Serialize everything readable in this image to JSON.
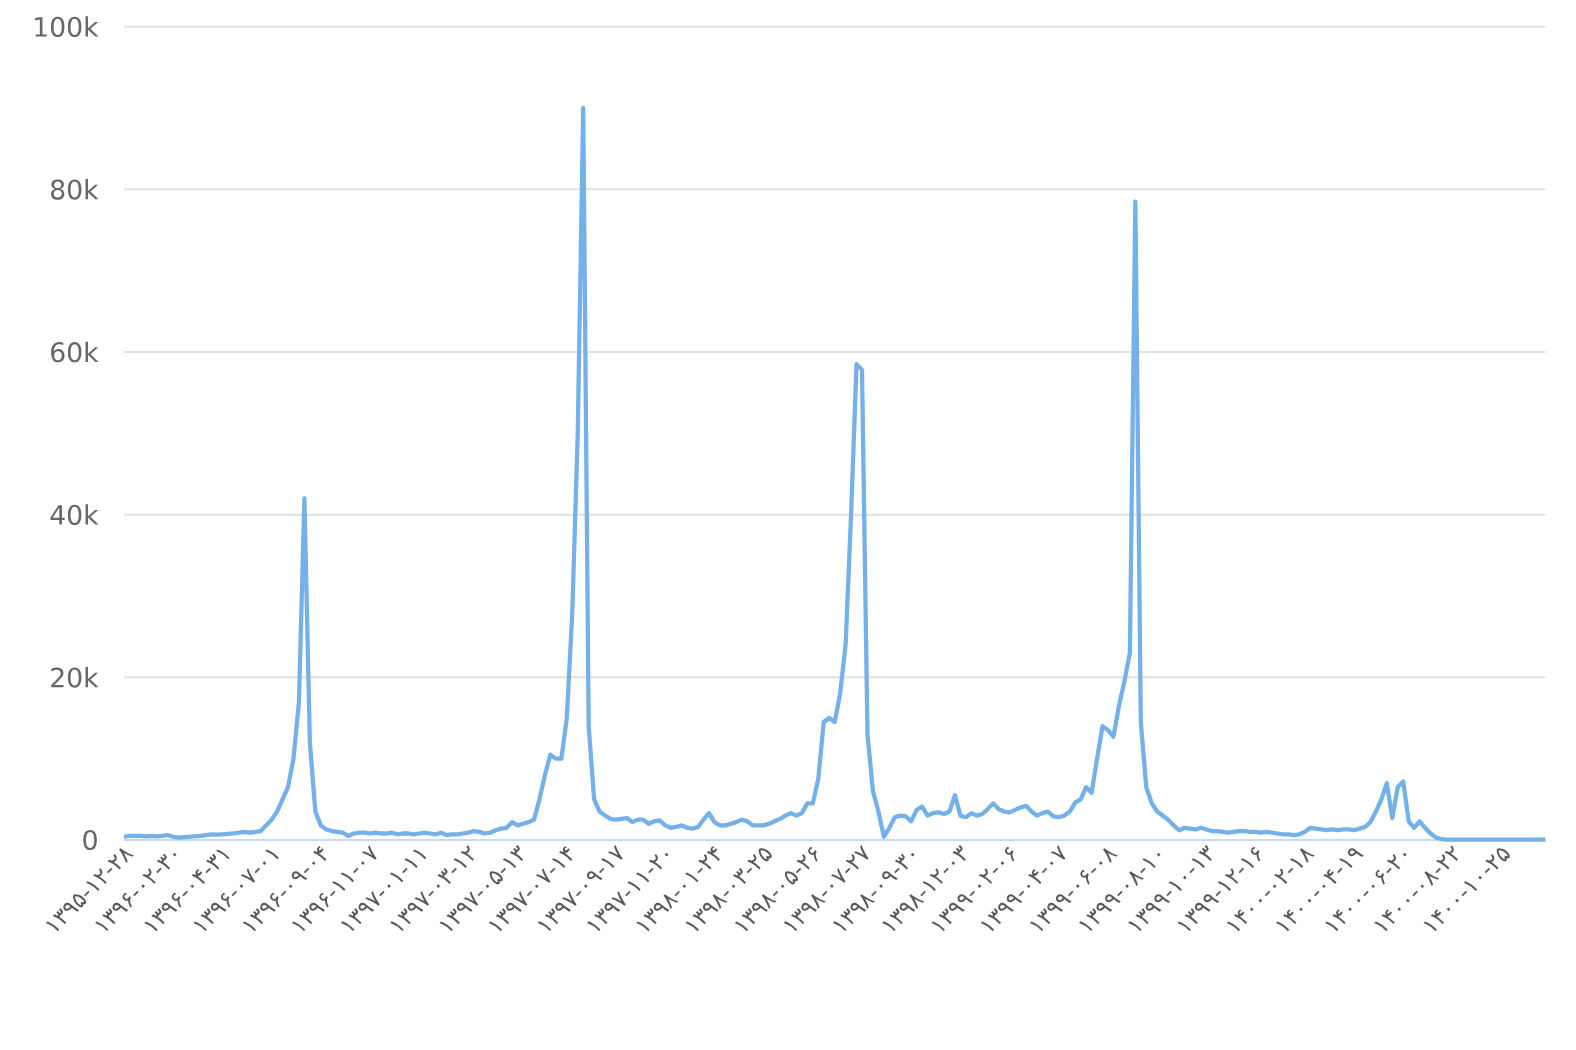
{
  "chart_data": {
    "type": "line",
    "color": "#74b0ea",
    "grid": "y",
    "ylim": [
      0,
      100000
    ],
    "yticks": [
      0,
      {
        "value": 20000,
        "label": "20k"
      },
      {
        "value": 40000,
        "label": "40k"
      },
      {
        "value": 60000,
        "label": "60k"
      },
      {
        "value": 80000,
        "label": "80k"
      },
      {
        "value": 100000,
        "label": "100k"
      }
    ],
    "categories": [
      "۱۳۹۵-۱۲-۲۸",
      null,
      null,
      null,
      null,
      null,
      null,
      null,
      null,
      "۱۳۹۶-۰۲-۳۰",
      null,
      null,
      null,
      null,
      null,
      null,
      null,
      null,
      "۱۳۹۶-۰۴-۳۱",
      null,
      null,
      null,
      null,
      null,
      null,
      null,
      null,
      "۱۳۹۶-۰۷-۰۱",
      null,
      null,
      null,
      null,
      null,
      null,
      null,
      null,
      "۱۳۹۶-۰۹-۰۴",
      null,
      null,
      null,
      null,
      null,
      null,
      null,
      null,
      "۱۳۹۶-۱۱-۰۷",
      null,
      null,
      null,
      null,
      null,
      null,
      null,
      null,
      "۱۳۹۷-۰۱-۱۱",
      null,
      null,
      null,
      null,
      null,
      null,
      null,
      null,
      "۱۳۹۷-۰۳-۱۲",
      null,
      null,
      null,
      null,
      null,
      null,
      null,
      null,
      "۱۳۹۷-۰۵-۱۳",
      null,
      null,
      null,
      null,
      null,
      null,
      null,
      null,
      "۱۳۹۷-۰۷-۱۴",
      null,
      null,
      null,
      null,
      null,
      null,
      null,
      null,
      "۱۳۹۷-۰۹-۱۷",
      null,
      null,
      null,
      null,
      null,
      null,
      null,
      null,
      "۱۳۹۷-۱۱-۲۰",
      null,
      null,
      null,
      null,
      null,
      null,
      null,
      null,
      "۱۳۹۸-۰۱-۲۴",
      null,
      null,
      null,
      null,
      null,
      null,
      null,
      null,
      "۱۳۹۸-۰۳-۲۵",
      null,
      null,
      null,
      null,
      null,
      null,
      null,
      null,
      "۱۳۹۸-۰۵-۲۶",
      null,
      null,
      null,
      null,
      null,
      null,
      null,
      null,
      "۱۳۹۸-۰۷-۲۷",
      null,
      null,
      null,
      null,
      null,
      null,
      null,
      null,
      "۱۳۹۸-۰۹-۳۰",
      null,
      null,
      null,
      null,
      null,
      null,
      null,
      null,
      "۱۳۹۸-۱۲-۰۳",
      null,
      null,
      null,
      null,
      null,
      null,
      null,
      null,
      "۱۳۹۹-۰۲-۰۶",
      null,
      null,
      null,
      null,
      null,
      null,
      null,
      null,
      "۱۳۹۹-۰۴-۰۷",
      null,
      null,
      null,
      null,
      null,
      null,
      null,
      null,
      "۱۳۹۹-۰۶-۰۸",
      null,
      null,
      null,
      null,
      null,
      null,
      null,
      null,
      "۱۳۹۹-۰۸-۱۰",
      null,
      null,
      null,
      null,
      null,
      null,
      null,
      null,
      "۱۳۹۹-۱۰-۱۳",
      null,
      null,
      null,
      null,
      null,
      null,
      null,
      null,
      "۱۳۹۹-۱۲-۱۶",
      null,
      null,
      null,
      null,
      null,
      null,
      null,
      null,
      "۱۴۰۰-۰۲-۱۸",
      null,
      null,
      null,
      null,
      null,
      null,
      null,
      null,
      "۱۴۰۰-۰۴-۱۹",
      null,
      null,
      null,
      null,
      null,
      null,
      null,
      null,
      "۱۴۰۰-۰۶-۲۰",
      null,
      null,
      null,
      null,
      null,
      null,
      null,
      null,
      "۱۴۰۰-۰۸-۲۲",
      null,
      null,
      null,
      null,
      null,
      null,
      null,
      null,
      "۱۴۰۰-۱۰-۲۵",
      null,
      null,
      null,
      null,
      null,
      null,
      null,
      null
    ],
    "values": [
      400,
      500,
      500,
      500,
      450,
      500,
      450,
      500,
      600,
      400,
      300,
      350,
      400,
      450,
      500,
      600,
      700,
      650,
      700,
      750,
      800,
      900,
      1000,
      900,
      1000,
      1100,
      1800,
      2500,
      3500,
      5000,
      6500,
      10000,
      17000,
      42000,
      12000,
      3500,
      1800,
      1300,
      1100,
      1000,
      900,
      500,
      800,
      900,
      900,
      800,
      900,
      800,
      800,
      900,
      700,
      800,
      800,
      700,
      800,
      900,
      800,
      700,
      900,
      600,
      700,
      700,
      800,
      900,
      1100,
      1000,
      800,
      900,
      1200,
      1400,
      1500,
      2200,
      1800,
      2000,
      2200,
      2500,
      5000,
      8000,
      10500,
      10000,
      10000,
      15000,
      28000,
      50000,
      90000,
      14000,
      5000,
      3500,
      3000,
      2600,
      2500,
      2600,
      2700,
      2200,
      2500,
      2500,
      2000,
      2300,
      2400,
      1800,
      1500,
      1600,
      1800,
      1500,
      1400,
      1600,
      2500,
      3300,
      2200,
      1800,
      1800,
      2000,
      2200,
      2500,
      2300,
      1800,
      1800,
      1800,
      2000,
      2300,
      2600,
      3000,
      3300,
      3000,
      3300,
      4500,
      4500,
      7500,
      14500,
      15000,
      14500,
      18000,
      24000,
      40000,
      58500,
      57800,
      13000,
      6000,
      3500,
      400,
      1500,
      2800,
      3000,
      2900,
      2300,
      3700,
      4100,
      3000,
      3300,
      3400,
      3200,
      3500,
      5500,
      3000,
      2800,
      3300,
      3000,
      3200,
      3800,
      4500,
      3800,
      3500,
      3400,
      3700,
      4000,
      4200,
      3500,
      3000,
      3300,
      3500,
      2900,
      2800,
      3000,
      3500,
      4600,
      5000,
      6500,
      5800,
      10000,
      14000,
      13500,
      12700,
      16500,
      19500,
      23000,
      78500,
      14500,
      6500,
      4500,
      3500,
      3000,
      2500,
      1800,
      1200,
      1500,
      1400,
      1300,
      1500,
      1300,
      1100,
      1100,
      1000,
      900,
      1000,
      1100,
      1100,
      1000,
      1000,
      900,
      1000,
      900,
      800,
      700,
      700,
      600,
      700,
      1000,
      1500,
      1400,
      1300,
      1200,
      1300,
      1200,
      1300,
      1300,
      1200,
      1400,
      1600,
      2200,
      3500,
      5000,
      7000,
      2700,
      6500,
      7200,
      2300,
      1500,
      2300,
      1500,
      800,
      300,
      100,
      50,
      50,
      50,
      50,
      50,
      50,
      50,
      50,
      50,
      50,
      50,
      50,
      50,
      50,
      50,
      50,
      50,
      50,
      50
    ]
  }
}
